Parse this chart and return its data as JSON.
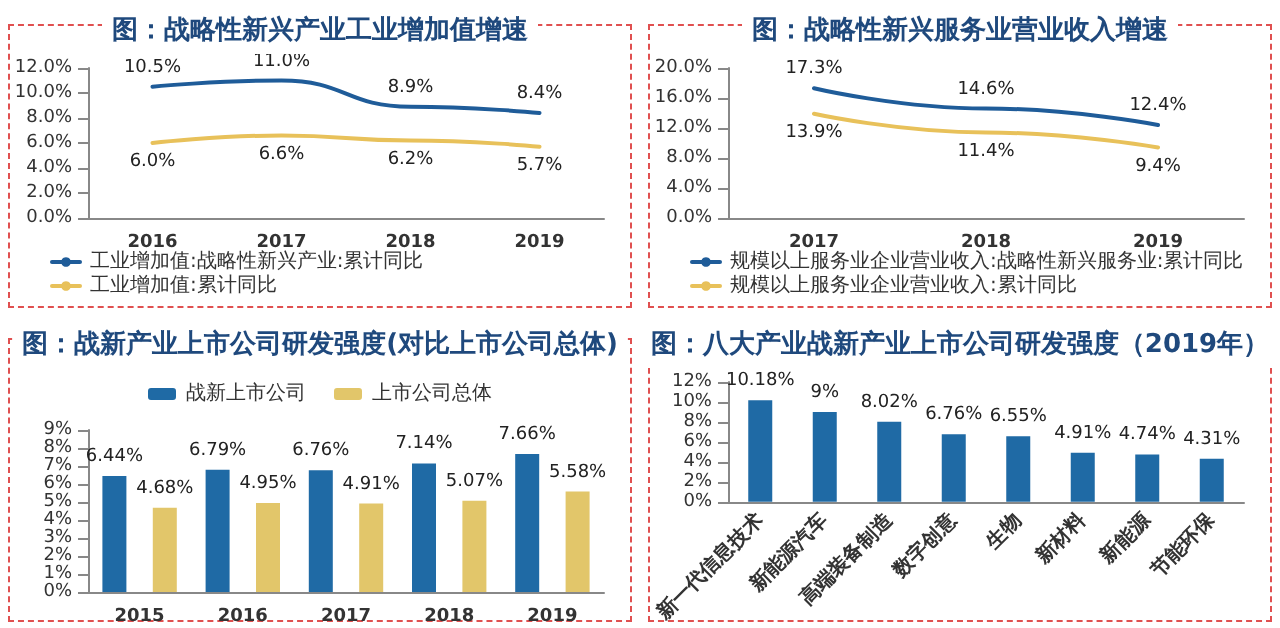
{
  "chart_data": [
    {
      "type": "line",
      "title": "图：战略性新兴产业工业增加值增速",
      "categories": [
        "2016",
        "2017",
        "2018",
        "2019"
      ],
      "series": [
        {
          "name": "工业增加值:战略性新兴产业:累计同比",
          "color": "#1f5c99",
          "values": [
            10.5,
            11.0,
            8.9,
            8.4
          ],
          "value_labels": [
            "10.5%",
            "11.0%",
            "8.9%",
            "8.4%"
          ]
        },
        {
          "name": "工业增加值:累计同比",
          "color": "#e8c15a",
          "values": [
            6.0,
            6.6,
            6.2,
            5.7
          ],
          "value_labels": [
            "6.0%",
            "6.6%",
            "6.2%",
            "5.7%"
          ]
        }
      ],
      "ylim": [
        0,
        12
      ],
      "yticks": [
        {
          "value": 0,
          "label": "0.0%"
        },
        {
          "value": 2,
          "label": "2.0%"
        },
        {
          "value": 4,
          "label": "4.0%"
        },
        {
          "value": 6,
          "label": "6.0%"
        },
        {
          "value": 8,
          "label": "8.0%"
        },
        {
          "value": 10,
          "label": "10.0%"
        },
        {
          "value": 12,
          "label": "12.0%"
        }
      ],
      "legend": "bottom",
      "marker": "none"
    },
    {
      "type": "line",
      "title": "图：战略性新兴服务业营业收入增速",
      "categories": [
        "2017",
        "2018",
        "2019"
      ],
      "series": [
        {
          "name": "规模以上服务业企业营业收入:战略性新兴服务业:累计同比",
          "color": "#1f5c99",
          "values": [
            17.3,
            14.6,
            12.4
          ],
          "value_labels": [
            "17.3%",
            "14.6%",
            "12.4%"
          ]
        },
        {
          "name": "规模以上服务业企业营业收入:累计同比",
          "color": "#e8c15a",
          "values": [
            13.9,
            11.4,
            9.4
          ],
          "value_labels": [
            "13.9%",
            "11.4%",
            "9.4%"
          ]
        }
      ],
      "ylim": [
        0,
        20
      ],
      "yticks": [
        {
          "value": 0,
          "label": "0.0%"
        },
        {
          "value": 4,
          "label": "4.0%"
        },
        {
          "value": 8,
          "label": "8.0%"
        },
        {
          "value": 12,
          "label": "12.0%"
        },
        {
          "value": 16,
          "label": "16.0%"
        },
        {
          "value": 20,
          "label": "20.0%"
        }
      ],
      "legend": "bottom",
      "marker": "none"
    },
    {
      "type": "bar",
      "title": "图：战新产业上市公司研发强度(对比上市公司总体)",
      "categories": [
        "2015",
        "2016",
        "2017",
        "2018",
        "2019"
      ],
      "series": [
        {
          "name": "战新上市公司",
          "color": "#1f6aa5",
          "values": [
            6.44,
            6.79,
            6.76,
            7.14,
            7.66
          ],
          "value_labels": [
            "6.44%",
            "6.79%",
            "6.76%",
            "7.14%",
            "7.66%"
          ]
        },
        {
          "name": "上市公司总体",
          "color": "#e2c66a",
          "values": [
            4.68,
            4.95,
            4.91,
            5.07,
            5.58
          ],
          "value_labels": [
            "4.68%",
            "4.95%",
            "4.91%",
            "5.07%",
            "5.58%"
          ]
        }
      ],
      "ylim": [
        0,
        9
      ],
      "yticks": [
        {
          "value": 0,
          "label": "0%"
        },
        {
          "value": 1,
          "label": "1%"
        },
        {
          "value": 2,
          "label": "2%"
        },
        {
          "value": 3,
          "label": "3%"
        },
        {
          "value": 4,
          "label": "4%"
        },
        {
          "value": 5,
          "label": "5%"
        },
        {
          "value": 6,
          "label": "6%"
        },
        {
          "value": 7,
          "label": "7%"
        },
        {
          "value": 8,
          "label": "8%"
        },
        {
          "value": 9,
          "label": "9%"
        }
      ],
      "legend": "top"
    },
    {
      "type": "bar",
      "title": "图：八大产业战新产业上市公司研发强度（2019年）",
      "categories": [
        "新一代信息技术",
        "新能源汽车",
        "高端装备制造",
        "数字创意",
        "生物",
        "新材料",
        "新能源",
        "节能环保"
      ],
      "series": [
        {
          "color": "#1f6aa5",
          "values": [
            10.18,
            9,
            8.02,
            6.76,
            6.55,
            4.91,
            4.74,
            4.31
          ],
          "value_labels": [
            "10.18%",
            "9%",
            "8.02%",
            "6.76%",
            "6.55%",
            "4.91%",
            "4.74%",
            "4.31%"
          ]
        }
      ],
      "ylim": [
        0,
        12
      ],
      "yticks": [
        {
          "value": 0,
          "label": "0%"
        },
        {
          "value": 2,
          "label": "2%"
        },
        {
          "value": 4,
          "label": "4%"
        },
        {
          "value": 6,
          "label": "6%"
        },
        {
          "value": 8,
          "label": "8%"
        },
        {
          "value": 10,
          "label": "10%"
        },
        {
          "value": 12,
          "label": "12%"
        }
      ]
    }
  ]
}
